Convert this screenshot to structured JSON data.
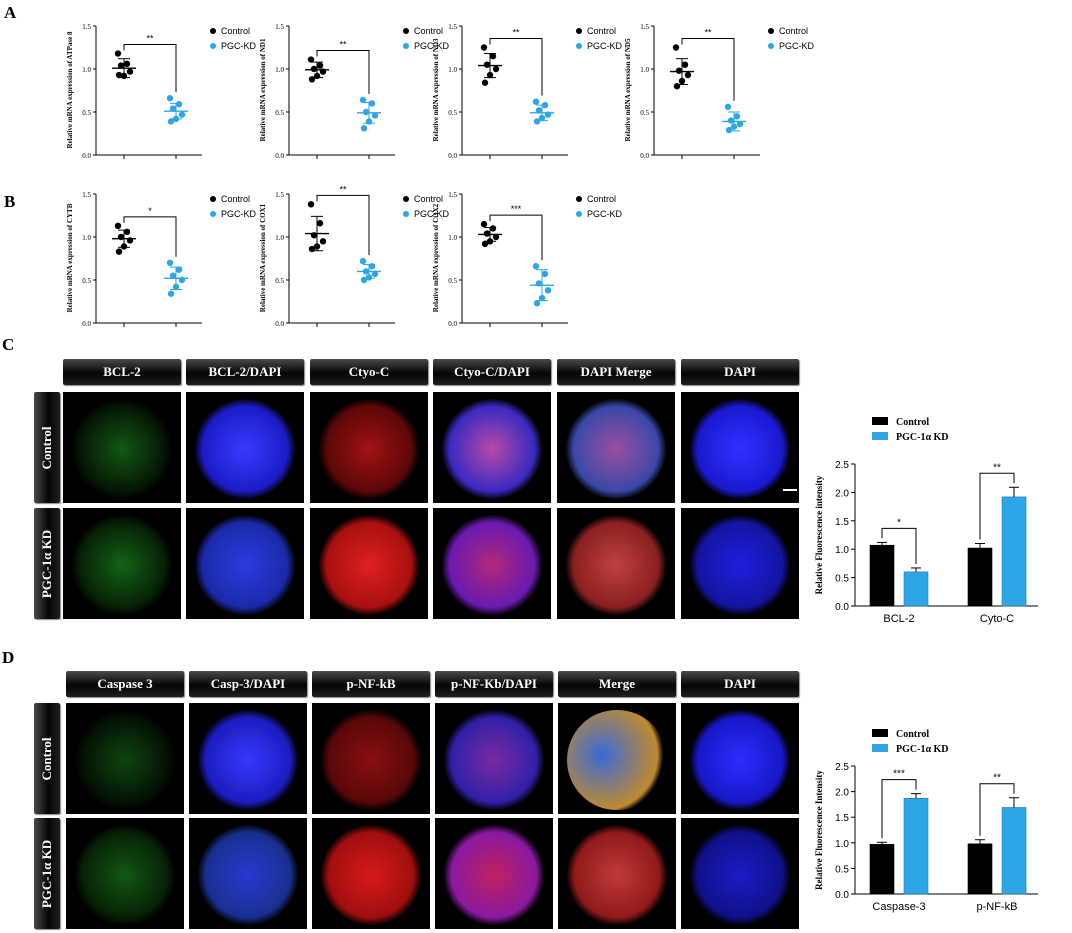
{
  "panel_letters": [
    "A",
    "B",
    "C",
    "D"
  ],
  "colors": {
    "control": "#000000",
    "pgc": "#2ea5e6",
    "green": "#27c62a",
    "blue": "#2727ff",
    "red": "#e41212"
  },
  "chart_data": [
    {
      "id": "atp8",
      "type": "scatter",
      "ylabel": "Relative mRNA expression of ATPase 8",
      "ylim": [
        0,
        1.5
      ],
      "yticks": [
        "0.0",
        "0.5",
        "1.0",
        "1.5"
      ],
      "significance": "**",
      "legend": [
        "Control",
        "PGC-KD"
      ],
      "series": [
        {
          "name": "Control",
          "values": [
            1.18,
            1.06,
            1.04,
            0.97,
            0.92,
            0.93
          ],
          "mean": 1.01,
          "sd": 0.11
        },
        {
          "name": "PGC-KD",
          "values": [
            0.66,
            0.59,
            0.54,
            0.47,
            0.42,
            0.39
          ],
          "mean": 0.51,
          "sd": 0.09
        }
      ]
    },
    {
      "id": "nd1",
      "type": "scatter",
      "ylabel": "Relative mRNA expression of ND1",
      "ylim": [
        0,
        1.5
      ],
      "yticks": [
        "0.0",
        "0.5",
        "1.0",
        "1.5"
      ],
      "significance": "**",
      "legend": [
        "Control",
        "PGC-KD"
      ],
      "series": [
        {
          "name": "Control",
          "values": [
            1.11,
            1.04,
            1.0,
            0.97,
            0.92,
            0.88
          ],
          "mean": 0.99,
          "sd": 0.09
        },
        {
          "name": "PGC-KD",
          "values": [
            0.64,
            0.6,
            0.5,
            0.46,
            0.39,
            0.31
          ],
          "mean": 0.49,
          "sd": 0.12
        }
      ]
    },
    {
      "id": "nd3",
      "type": "scatter",
      "ylabel": "Relative mRNA expression of ND3",
      "ylim": [
        0,
        1.5
      ],
      "yticks": [
        "0.0",
        "0.5",
        "1.0",
        "1.5"
      ],
      "significance": "**",
      "legend": [
        "Control",
        "PGC-KD"
      ],
      "series": [
        {
          "name": "Control",
          "values": [
            1.25,
            1.15,
            1.05,
            1.0,
            0.93,
            0.84
          ],
          "mean": 1.04,
          "sd": 0.14
        },
        {
          "name": "PGC-KD",
          "values": [
            0.62,
            0.58,
            0.52,
            0.47,
            0.43,
            0.39
          ],
          "mean": 0.49,
          "sd": 0.09
        }
      ]
    },
    {
      "id": "nd5",
      "type": "scatter",
      "ylabel": "Relative mRNA expression of ND5",
      "ylim": [
        0,
        1.5
      ],
      "yticks": [
        "0.0",
        "0.5",
        "1.0",
        "1.5"
      ],
      "significance": "**",
      "legend": [
        "Control",
        "PGC-KD"
      ],
      "series": [
        {
          "name": "Control",
          "values": [
            1.25,
            1.05,
            0.98,
            0.93,
            0.86,
            0.8
          ],
          "mean": 0.97,
          "sd": 0.15
        },
        {
          "name": "PGC-KD",
          "values": [
            0.56,
            0.45,
            0.4,
            0.36,
            0.33,
            0.29
          ],
          "mean": 0.39,
          "sd": 0.11
        }
      ]
    },
    {
      "id": "cytb",
      "type": "scatter",
      "ylabel": "Relative mRNA expression of CYTB",
      "ylim": [
        0,
        1.5
      ],
      "yticks": [
        "0.0",
        "0.5",
        "1.0",
        "1.5"
      ],
      "significance": "*",
      "legend": [
        "Control",
        "PGC-KD"
      ],
      "series": [
        {
          "name": "Control",
          "values": [
            1.13,
            1.06,
            1.0,
            0.96,
            0.89,
            0.83
          ],
          "mean": 0.98,
          "sd": 0.1
        },
        {
          "name": "PGC-KD",
          "values": [
            0.7,
            0.62,
            0.55,
            0.5,
            0.42,
            0.34
          ],
          "mean": 0.52,
          "sd": 0.13
        }
      ]
    },
    {
      "id": "cox1",
      "type": "scatter",
      "ylabel": "Relative mRNA expression of COX1",
      "ylim": [
        0,
        1.5
      ],
      "yticks": [
        "0.0",
        "0.5",
        "1.0",
        "1.5"
      ],
      "significance": "**",
      "legend": [
        "Control",
        "PGC-KD"
      ],
      "series": [
        {
          "name": "Control",
          "values": [
            1.38,
            1.16,
            1.02,
            0.95,
            0.89,
            0.86
          ],
          "mean": 1.04,
          "sd": 0.2
        },
        {
          "name": "PGC-KD",
          "values": [
            0.72,
            0.66,
            0.6,
            0.57,
            0.53,
            0.5
          ],
          "mean": 0.6,
          "sd": 0.08
        }
      ]
    },
    {
      "id": "cox2",
      "type": "scatter",
      "ylabel": "Relative mRNA expression of COX2",
      "ylim": [
        0,
        1.5
      ],
      "yticks": [
        "0.0",
        "0.5",
        "1.0",
        "1.5"
      ],
      "significance": "***",
      "legend": [
        "Control",
        "PGC-KD"
      ],
      "series": [
        {
          "name": "Control",
          "values": [
            1.15,
            1.1,
            1.04,
            1.0,
            0.95,
            0.92
          ],
          "mean": 1.03,
          "sd": 0.08
        },
        {
          "name": "PGC-KD",
          "values": [
            0.66,
            0.57,
            0.46,
            0.38,
            0.29,
            0.23
          ],
          "mean": 0.44,
          "sd": 0.18
        }
      ]
    },
    {
      "id": "bcl-cyto",
      "type": "bar",
      "ylabel": "Relative Fluorescence intensity",
      "ylim": [
        0,
        2.5
      ],
      "yticks": [
        "0.0",
        "0.5",
        "1.0",
        "1.5",
        "2.0",
        "2.5"
      ],
      "categories": [
        "BCL-2",
        "Cyto-C"
      ],
      "legend": [
        "Control",
        "PGC-1α KD"
      ],
      "significance": [
        "*",
        "**"
      ],
      "series": [
        {
          "name": "Control",
          "values": [
            1.07,
            1.02
          ],
          "err": [
            0.05,
            0.08
          ]
        },
        {
          "name": "PGC-1α KD",
          "values": [
            0.6,
            1.92
          ],
          "err": [
            0.07,
            0.17
          ]
        }
      ]
    },
    {
      "id": "casp-nfkb",
      "type": "bar",
      "ylabel": "Relative Fluorescence Intensity",
      "ylim": [
        0,
        2.5
      ],
      "yticks": [
        "0.0",
        "0.5",
        "1.0",
        "1.5",
        "2.0",
        "2.5"
      ],
      "categories": [
        "Caspase-3",
        "p-NF-kB"
      ],
      "legend": [
        "Control",
        "PGC-1α KD"
      ],
      "significance": [
        "***",
        "**"
      ],
      "series": [
        {
          "name": "Control",
          "values": [
            0.97,
            0.98
          ],
          "err": [
            0.04,
            0.08
          ]
        },
        {
          "name": "PGC-1α KD",
          "values": [
            1.87,
            1.69
          ],
          "err": [
            0.09,
            0.19
          ]
        }
      ]
    }
  ],
  "panel_c": {
    "headers": [
      "BCL-2",
      "BCL-2/DAPI",
      "Ctyo-C",
      "Ctyo-C/DAPI",
      "DAPI Merge",
      "DAPI"
    ],
    "rows": [
      "Control",
      "PGC-1α KD"
    ]
  },
  "panel_d": {
    "headers": [
      "Caspase 3",
      "Casp-3/DAPI",
      "p-NF-kB",
      "p-NF-Kb/DAPI",
      "Merge",
      "DAPI"
    ],
    "rows": [
      "Control",
      "PGC-1α KD"
    ]
  }
}
